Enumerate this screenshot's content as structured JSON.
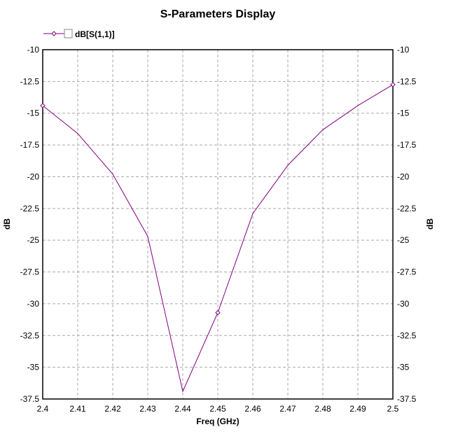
{
  "chart_data": {
    "type": "line",
    "title": "S-Parameters Display",
    "xlabel": "Freq (GHz)",
    "ylabel": "dB",
    "ylabel_right": "dB",
    "xlim": [
      2.4,
      2.5
    ],
    "ylim": [
      -37.5,
      -10
    ],
    "grid": true,
    "legend_placement": "top-left",
    "x_ticks": [
      "2.4",
      "2.41",
      "2.42",
      "2.43",
      "2.44",
      "2.45",
      "2.46",
      "2.47",
      "2.48",
      "2.49",
      "2.5"
    ],
    "y_ticks": [
      "-10",
      "-12.5",
      "-15",
      "-17.5",
      "-20",
      "-22.5",
      "-25",
      "-27.5",
      "-30",
      "-32.5",
      "-35",
      "-37.5"
    ],
    "series": [
      {
        "name": "dB[S(1,1)]",
        "color": "#800080",
        "x": [
          2.4,
          2.41,
          2.42,
          2.43,
          2.44,
          2.45,
          2.46,
          2.47,
          2.48,
          2.49,
          2.5
        ],
        "values": [
          -14.4,
          -16.6,
          -19.8,
          -24.7,
          -36.9,
          -30.7,
          -22.9,
          -19.1,
          -16.3,
          -14.4,
          -12.75
        ],
        "marker_every": 5
      }
    ]
  }
}
